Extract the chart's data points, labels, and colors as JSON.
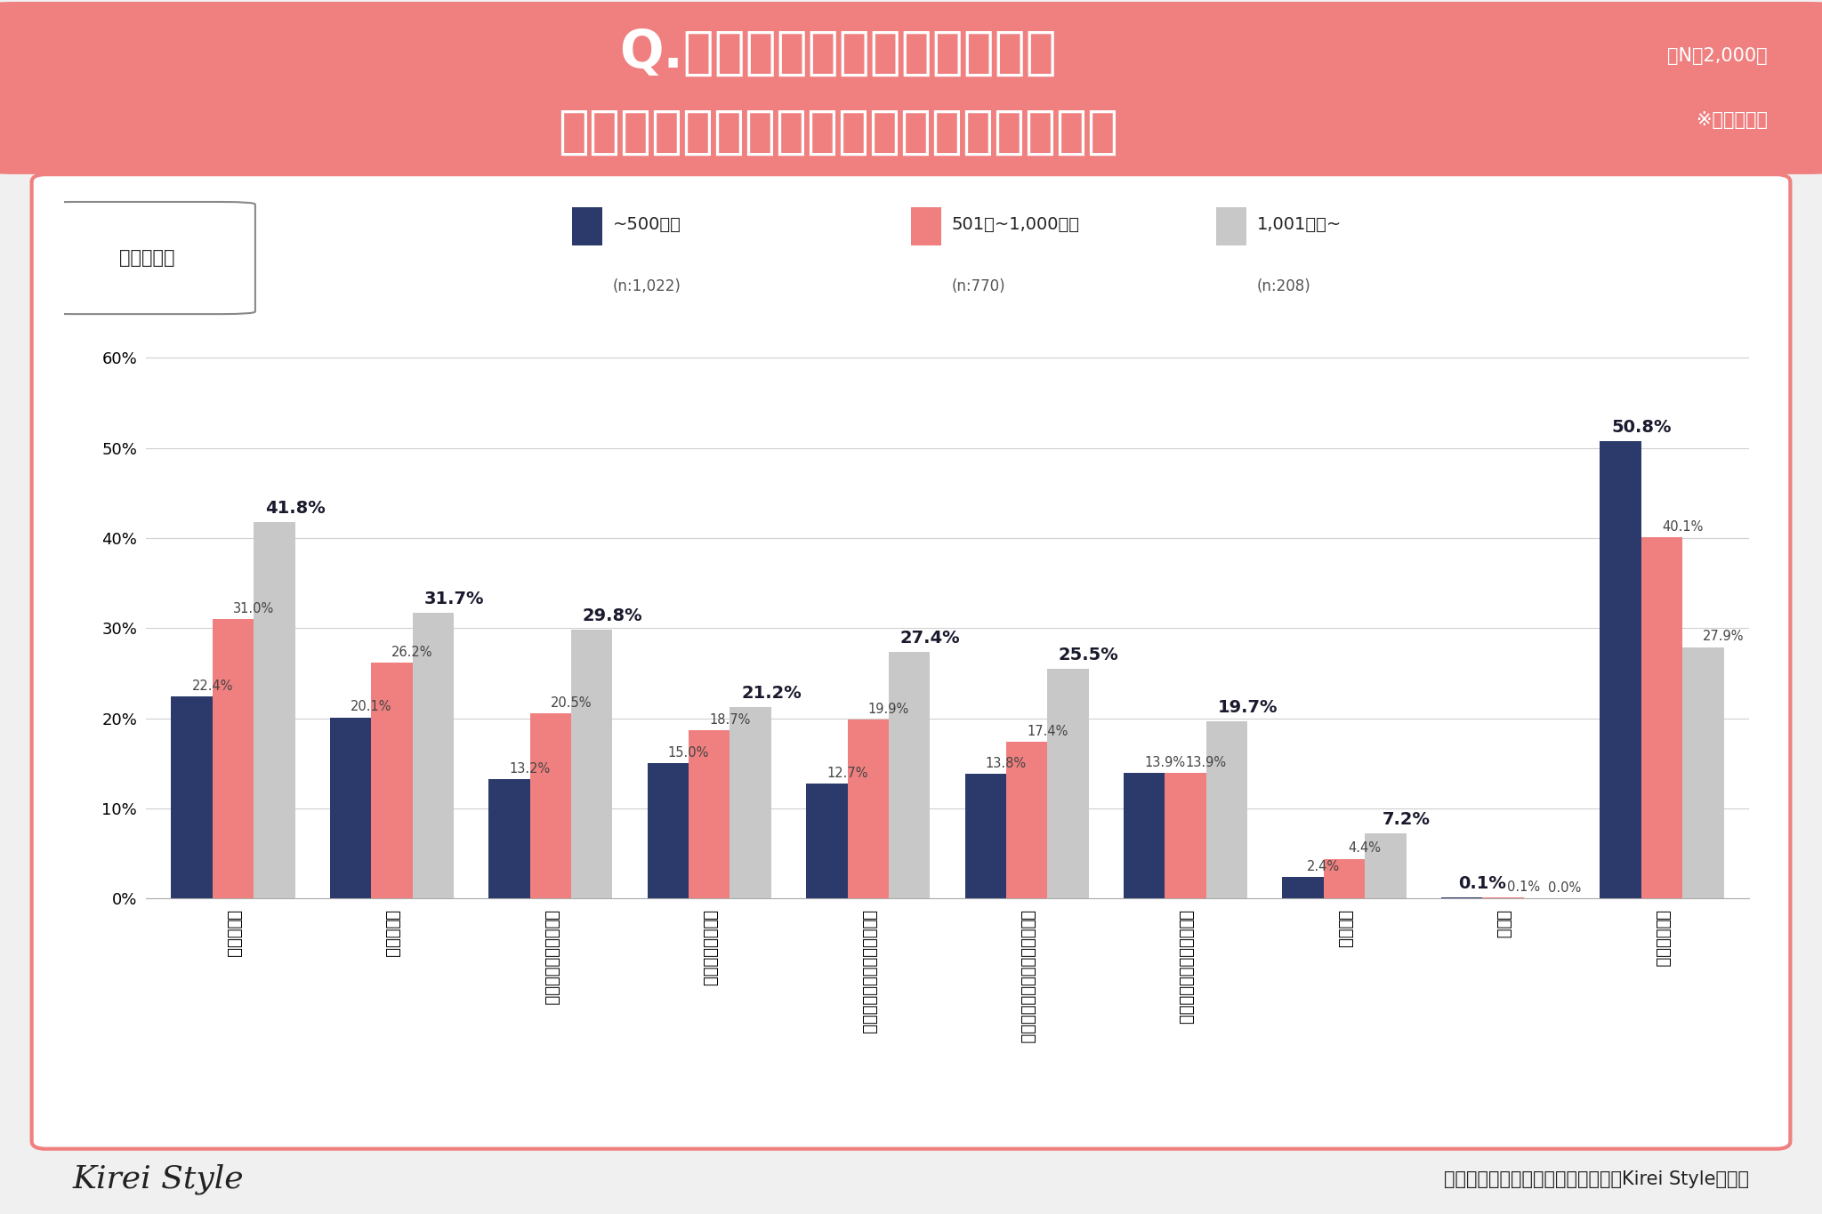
{
  "title_line1": "Q.アンチエイジングのために",
  "title_line2": "意識して行っていることはありますか？",
  "n_label": "（N：2,000）",
  "multiple_answer": "※複数回答可",
  "group_label": "世帯年収別",
  "categories": [
    "スキンケア",
    "紫外線対策",
    "栄養を意識した食生活",
    "睡眠に関すること",
    "筋トレ、ヨガ、ピラティス等",
    "サプリメント・健康食品の摂取",
    "ジョギングなどの軽い運動",
    "養毛ケア",
    "その他",
    "行っていない"
  ],
  "series": [
    {
      "label": "~500万円",
      "sublabel": "(n:1,022)",
      "color": "#2b3a6b",
      "values": [
        22.4,
        20.1,
        13.2,
        15.0,
        12.7,
        13.8,
        13.9,
        2.4,
        0.1,
        50.8
      ]
    },
    {
      "label": "501万~1,000万円",
      "sublabel": "(n:770)",
      "color": "#f08080",
      "values": [
        31.0,
        26.2,
        20.5,
        18.7,
        19.9,
        17.4,
        13.9,
        4.4,
        0.1,
        40.1
      ]
    },
    {
      "label": "1,001万円~",
      "sublabel": "(n:208)",
      "color": "#c8c8c8",
      "values": [
        41.8,
        31.7,
        29.8,
        21.2,
        27.4,
        25.5,
        19.7,
        7.2,
        0.0,
        27.9
      ]
    }
  ],
  "ylim": [
    0,
    62
  ],
  "yticks": [
    0,
    10,
    20,
    30,
    40,
    50,
    60
  ],
  "header_bg_color": "#f08080",
  "border_color": "#f08080",
  "footer_text": "株式会社ビズキ　美容情報サイト『Kirei Style』調べ"
}
